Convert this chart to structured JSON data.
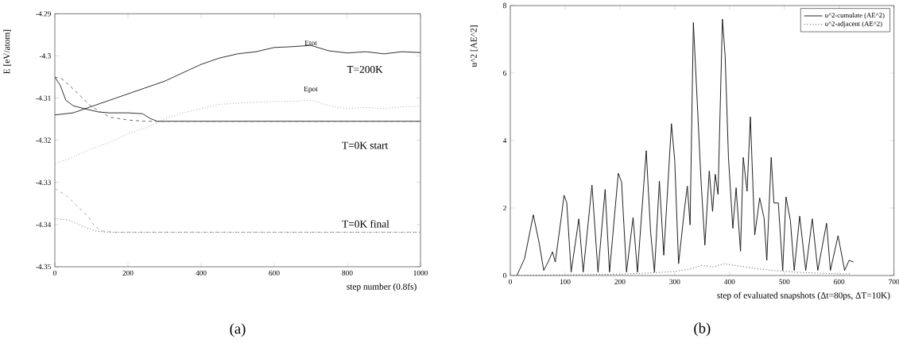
{
  "chart_data": [
    {
      "type": "line",
      "xlabel": "step number (0.8fs)",
      "ylabel": "E [eV/atom]",
      "xlim": [
        0,
        1000
      ],
      "ylim": [
        -4.35,
        -4.29
      ],
      "xticks": [
        0,
        200,
        400,
        600,
        800,
        1000
      ],
      "yticks": [
        -4.35,
        -4.34,
        -4.33,
        -4.32,
        -4.31,
        -4.3,
        -4.29
      ],
      "grid": false,
      "legend": false,
      "marker": "none",
      "series": [
        {
          "color": "#222222",
          "line_style": "solid",
          "x": [
            0,
            50,
            100,
            150,
            200,
            250,
            300,
            350,
            400,
            450,
            500,
            550,
            600,
            650,
            700,
            750,
            800,
            850,
            900,
            950,
            1000
          ],
          "values": [
            -4.314,
            -4.3135,
            -4.312,
            -4.3105,
            -4.309,
            -4.3075,
            -4.306,
            -4.304,
            -4.302,
            -4.3005,
            -4.2995,
            -4.299,
            -4.298,
            -4.2978,
            -4.2975,
            -4.2988,
            -4.2993,
            -4.299,
            -4.2995,
            -4.299,
            -4.2992
          ]
        },
        {
          "color": "#999999",
          "line_style": "dotted",
          "x": [
            0,
            50,
            100,
            150,
            200,
            250,
            300,
            350,
            400,
            450,
            500,
            550,
            600,
            650,
            700,
            750,
            800,
            850,
            900,
            950,
            1000
          ],
          "values": [
            -4.3255,
            -4.324,
            -4.322,
            -4.3205,
            -4.3185,
            -4.317,
            -4.315,
            -4.3135,
            -4.3125,
            -4.3115,
            -4.3112,
            -4.311,
            -4.3108,
            -4.3108,
            -4.3105,
            -4.3118,
            -4.3125,
            -4.3122,
            -4.3125,
            -4.312,
            -4.312
          ]
        },
        {
          "color": "#222222",
          "line_style": "solid",
          "x": [
            0,
            15,
            30,
            50,
            80,
            120,
            150,
            200,
            240,
            260,
            280,
            350,
            500,
            700,
            1000
          ],
          "values": [
            -4.305,
            -4.307,
            -4.3105,
            -4.3118,
            -4.3125,
            -4.3133,
            -4.3135,
            -4.3135,
            -4.3137,
            -4.3148,
            -4.3155,
            -4.3155,
            -4.3155,
            -4.3155,
            -4.3155
          ]
        },
        {
          "color": "#666666",
          "line_style": "dashed",
          "x": [
            0,
            20,
            40,
            70,
            100,
            130,
            150,
            200,
            250,
            400,
            700,
            1000
          ],
          "values": [
            -4.305,
            -4.3055,
            -4.307,
            -4.3095,
            -4.312,
            -4.3135,
            -4.3145,
            -4.3152,
            -4.3155,
            -4.3155,
            -4.3155,
            -4.3155
          ]
        },
        {
          "color": "#aaaaaa",
          "line_style": "dashed",
          "x": [
            0,
            30,
            60,
            90,
            110,
            130,
            160,
            250,
            500,
            1000
          ],
          "values": [
            -4.3315,
            -4.333,
            -4.3355,
            -4.338,
            -4.3405,
            -4.3415,
            -4.3418,
            -4.3418,
            -4.3418,
            -4.3418
          ]
        },
        {
          "color": "#555555",
          "line_style": "dotted",
          "x": [
            0,
            40,
            70,
            110,
            140,
            250,
            500,
            1000
          ],
          "values": [
            -4.3385,
            -4.339,
            -4.3402,
            -4.3415,
            -4.3418,
            -4.3418,
            -4.3418,
            -4.3418
          ]
        }
      ],
      "annotations": [
        "Etot",
        "Epot",
        "T=200K",
        "T=0K start",
        "T=0K final",
        "(a)"
      ]
    },
    {
      "type": "line",
      "xlabel": "step of evaluated snapshots (Δt=80ps, ΔT=10K)",
      "ylabel": "u^2 [AE^2]",
      "xlim": [
        0,
        700
      ],
      "ylim": [
        0,
        8
      ],
      "xticks": [
        0,
        100,
        200,
        300,
        400,
        500,
        600,
        700
      ],
      "yticks": [
        0,
        2,
        4,
        6,
        8
      ],
      "grid": false,
      "legend": "top right",
      "marker": "none",
      "series": [
        {
          "name": "u^2-cumulate (AE^2)",
          "color": "#111111",
          "line_style": "solid",
          "x": [
            12,
            26,
            42,
            53,
            61,
            69,
            77,
            82,
            93,
            98,
            103,
            111,
            125,
            133,
            149,
            160,
            173,
            181,
            197,
            203,
            212,
            224,
            232,
            248,
            256,
            263,
            272,
            280,
            294,
            300,
            307,
            318,
            323,
            328,
            334,
            340,
            348,
            355,
            363,
            369,
            374,
            379,
            387,
            392,
            398,
            406,
            412,
            420,
            425,
            432,
            438,
            446,
            455,
            463,
            468,
            476,
            481,
            489,
            497,
            503,
            511,
            518,
            528,
            539,
            551,
            561,
            577,
            584,
            598,
            610,
            618,
            626
          ],
          "values": [
            0,
            0.5,
            1.8,
            0.93,
            0.15,
            0.4,
            0.7,
            0.4,
            1.72,
            2.38,
            2.16,
            0.1,
            1.68,
            0.1,
            2.68,
            0.1,
            2.55,
            0.1,
            3.03,
            2.77,
            0.1,
            1.72,
            0.1,
            3.7,
            1.28,
            0.1,
            2.8,
            0.6,
            4.5,
            3.4,
            0.35,
            2.0,
            2.65,
            1.5,
            7.5,
            5.5,
            2.8,
            0.9,
            3.1,
            1.9,
            3.0,
            2.4,
            7.6,
            6.5,
            3.5,
            1.4,
            2.6,
            0.72,
            3.5,
            2.5,
            4.7,
            1.2,
            2.3,
            1.7,
            0.45,
            3.5,
            2.15,
            2.15,
            0.15,
            2.33,
            1.63,
            0.15,
            1.76,
            0.15,
            1.68,
            0.15,
            1.55,
            0.15,
            1.18,
            0.15,
            0.45,
            0.4
          ]
        },
        {
          "name": "u^2-adjacent (AE^2)",
          "color": "#333333",
          "line_style": "dotted",
          "x": [
            0,
            100,
            200,
            250,
            300,
            330,
            350,
            370,
            390,
            410,
            430,
            450,
            480,
            520,
            560,
            600,
            620
          ],
          "values": [
            0,
            0.02,
            0.04,
            0.07,
            0.12,
            0.2,
            0.3,
            0.25,
            0.35,
            0.3,
            0.25,
            0.2,
            0.15,
            0.1,
            0.07,
            0.05,
            0.05
          ]
        }
      ],
      "annotations": [
        "(b)"
      ]
    }
  ]
}
